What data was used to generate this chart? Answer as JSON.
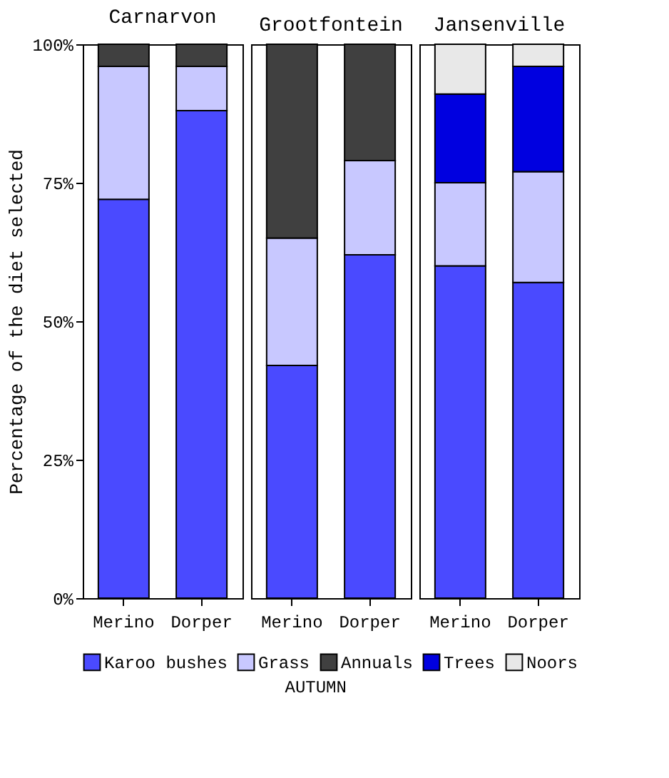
{
  "chart_data": [
    {
      "type": "bar",
      "title": "Carnarvon",
      "ylabel": "Percentage of the diet selected",
      "categories": [
        "Merino",
        "Dorper"
      ],
      "stacked": true,
      "ylim": [
        0,
        100
      ],
      "yticks": [
        {
          "value": 0,
          "label": "0%"
        },
        {
          "value": 25,
          "label": "25%"
        },
        {
          "value": 50,
          "label": "50%"
        },
        {
          "value": 75,
          "label": "75%"
        },
        {
          "value": 100,
          "label": "100%"
        }
      ],
      "legend": "bottom",
      "annotations": [
        "AUTUMN"
      ],
      "series": [
        {
          "name": "Karoo bushes",
          "color": "#4a4aff",
          "values": [
            72,
            88
          ]
        },
        {
          "name": "Grass",
          "color": "#c8c8ff",
          "values": [
            24,
            8
          ]
        },
        {
          "name": "Annuals",
          "color": "#404040",
          "values": [
            4,
            4
          ]
        },
        {
          "name": "Trees",
          "color": "#0000e0",
          "values": [
            null,
            null
          ]
        },
        {
          "name": "Noors",
          "color": "#e8e8e8",
          "values": [
            null,
            null
          ]
        }
      ]
    },
    {
      "type": "bar",
      "title": "Grootfontein",
      "categories": [
        "Merino",
        "Dorper"
      ],
      "stacked": true,
      "ylim": [
        0,
        100
      ],
      "tick_labels": "x",
      "series": [
        {
          "color": "#4a4aff",
          "values": [
            42,
            62
          ]
        },
        {
          "color": "#c8c8ff",
          "values": [
            23,
            17
          ]
        },
        {
          "color": "#404040",
          "values": [
            35,
            21
          ]
        }
      ]
    },
    {
      "type": "bar",
      "title": "Jansenville",
      "categories": [
        "Merino",
        "Dorper"
      ],
      "stacked": true,
      "ylim": [
        0,
        100
      ],
      "tick_labels": "x",
      "series": [
        {
          "color": "#4a4aff",
          "values": [
            60,
            57
          ]
        },
        {
          "color": "#c8c8ff",
          "values": [
            15,
            20
          ]
        },
        {
          "color": "#0000e0",
          "values": [
            16,
            19
          ]
        },
        {
          "color": "#e8e8e8",
          "values": [
            9,
            4
          ]
        }
      ]
    }
  ]
}
